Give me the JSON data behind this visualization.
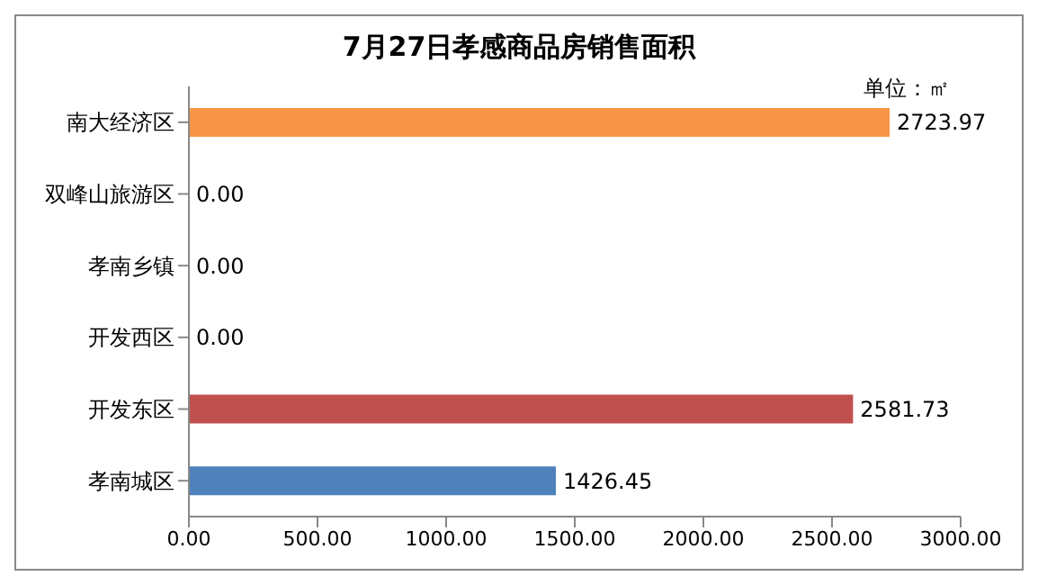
{
  "chart_data": {
    "type": "bar",
    "orientation": "horizontal",
    "title": "7月27日孝感商品房销售面积",
    "annotations": [
      "单位：㎡"
    ],
    "categories": [
      "南大经济区",
      "双峰山旅游区",
      "孝南乡镇",
      "开发西区",
      "开发东区",
      "孝南城区"
    ],
    "values": [
      2723.97,
      0,
      0,
      0,
      2581.73,
      1426.45
    ],
    "colors": [
      "#f79646",
      "#f79646",
      "#f79646",
      "#f79646",
      "#c0504d",
      "#4f81bd"
    ],
    "value_labels": [
      "2723.97",
      "0.00",
      "0.00",
      "0.00",
      "2581.73",
      "1426.45"
    ],
    "xlim": [
      0,
      3000
    ],
    "xticks": [
      {
        "value": 0,
        "label": "0.00"
      },
      {
        "value": 500,
        "label": "500.00"
      },
      {
        "value": 1000,
        "label": "1000.00"
      },
      {
        "value": 1500,
        "label": "1500.00"
      },
      {
        "value": 2000,
        "label": "2000.00"
      },
      {
        "value": 2500,
        "label": "2500.00"
      },
      {
        "value": 3000,
        "label": "3000.00"
      }
    ],
    "grid": false,
    "legend": false
  }
}
